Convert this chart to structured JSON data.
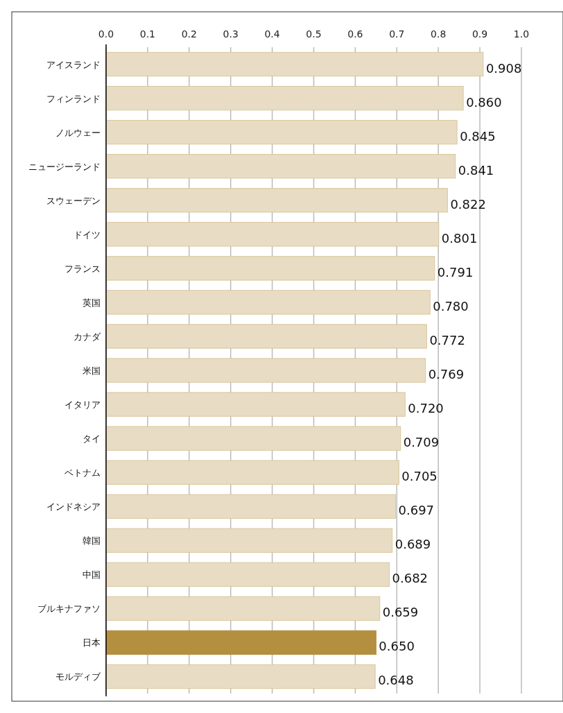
{
  "chart_data": {
    "type": "bar",
    "orientation": "horizontal",
    "categories": [
      "アイスランド",
      "フィンランド",
      "ノルウェー",
      "ニュージーランド",
      "スウェーデン",
      "ドイツ",
      "フランス",
      "英国",
      "カナダ",
      "米国",
      "イタリア",
      "タイ",
      "ベトナム",
      "インドネシア",
      "韓国",
      "中国",
      "ブルキナファソ",
      "日本",
      "モルディブ"
    ],
    "values": [
      0.908,
      0.86,
      0.845,
      0.841,
      0.822,
      0.801,
      0.791,
      0.78,
      0.772,
      0.769,
      0.72,
      0.709,
      0.705,
      0.697,
      0.689,
      0.682,
      0.659,
      0.65,
      0.648
    ],
    "value_labels": [
      "0.908",
      "0.860",
      "0.845",
      "0.841",
      "0.822",
      "0.801",
      "0.791",
      "0.780",
      "0.772",
      "0.769",
      "0.720",
      "0.709",
      "0.705",
      "0.697",
      "0.689",
      "0.682",
      "0.659",
      "0.650",
      "0.648"
    ],
    "colors": [
      "#e8dcc4",
      "#e8dcc4",
      "#e8dcc4",
      "#e8dcc4",
      "#e8dcc4",
      "#e8dcc4",
      "#e8dcc4",
      "#e8dcc4",
      "#e8dcc4",
      "#e8dcc4",
      "#e8dcc4",
      "#e8dcc4",
      "#e8dcc4",
      "#e8dcc4",
      "#e8dcc4",
      "#e8dcc4",
      "#e8dcc4",
      "#b38f3f",
      "#e8dcc4"
    ],
    "xlim": [
      0,
      1.0
    ],
    "xticks": [
      {
        "value": 0,
        "label": "0.0"
      },
      {
        "value": 0.1,
        "label": "0.1"
      },
      {
        "value": 0.2,
        "label": "0.2"
      },
      {
        "value": 0.3,
        "label": "0.3"
      },
      {
        "value": 0.4,
        "label": "0.4"
      },
      {
        "value": 0.5,
        "label": "0.5"
      },
      {
        "value": 0.6,
        "label": "0.6"
      },
      {
        "value": 0.7,
        "label": "0.7"
      },
      {
        "value": 0.8,
        "label": "0.8"
      },
      {
        "value": 0.9,
        "label": "0.9"
      },
      {
        "value": 1.0,
        "label": "1.0"
      }
    ],
    "grid": "x"
  }
}
